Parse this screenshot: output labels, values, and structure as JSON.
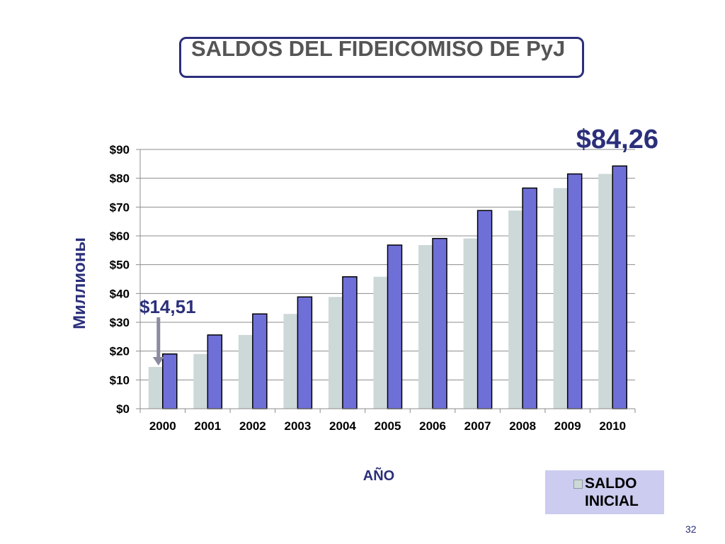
{
  "slide": {
    "title": "SALDOS DEL FIDEICOMISO DE PyJ",
    "page_number": "32"
  },
  "colors": {
    "series_saldo_inicial": "#cdd8d8",
    "series_2": "#6f6fd8",
    "title_border": "#2b2f7a",
    "callout_text": "#2b2f7a",
    "legend_background": "#ccccf0"
  },
  "chart_data": {
    "type": "bar",
    "xlabel": "AÑO",
    "ylabel": "Миллионы",
    "ylim": [
      0,
      90
    ],
    "y_ticks": [
      "$0",
      "$10",
      "$20",
      "$30",
      "$40",
      "$50",
      "$60",
      "$70",
      "$80",
      "$90"
    ],
    "grid": true,
    "categories": [
      "2000",
      "2001",
      "2002",
      "2003",
      "2004",
      "2005",
      "2006",
      "2007",
      "2008",
      "2009",
      "2010"
    ],
    "series": [
      {
        "name": "SALDO INICIAL",
        "values": [
          14.51,
          19.0,
          25.6,
          32.9,
          38.8,
          45.8,
          56.8,
          59.1,
          68.8,
          76.6,
          81.5
        ]
      },
      {
        "values": [
          19.0,
          25.6,
          32.9,
          38.8,
          45.8,
          56.8,
          59.1,
          68.8,
          76.6,
          81.5,
          84.26
        ]
      }
    ],
    "annotations": [
      {
        "text": "$14,51",
        "category": "2000",
        "value": 14.51,
        "arrow": true
      },
      {
        "text": "$84,26",
        "category": "2010",
        "value": 84.26
      }
    ],
    "legend": {
      "position": "bottom-right",
      "entries": [
        "SALDO INICIAL"
      ]
    }
  }
}
